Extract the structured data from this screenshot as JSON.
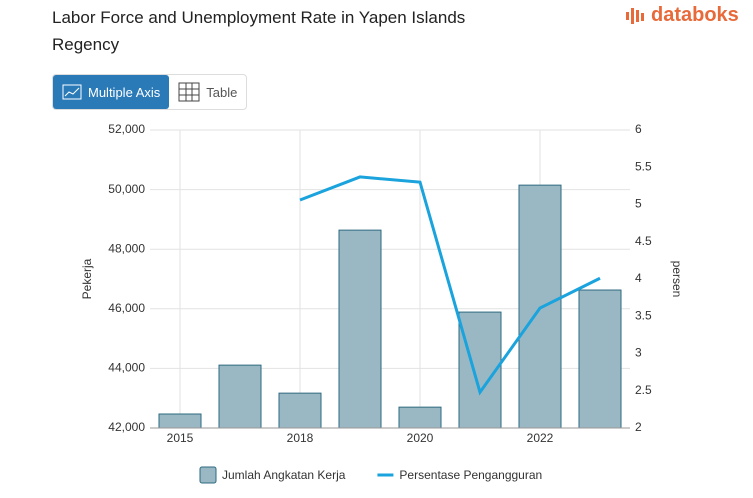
{
  "brand": "databoks",
  "buttons": [
    "Multiple Axis",
    "Table"
  ],
  "chart_data": {
    "type": "bar",
    "title": "Labor Force and Unemployment Rate in Yapen Islands Regency",
    "categories": [
      "2015",
      null,
      "2018",
      null,
      "2020",
      null,
      "2022",
      null
    ],
    "series": [
      {
        "name": "Jumlah Angkatan Kerja",
        "type": "bar",
        "color": "#9ab8c4",
        "values": [
          42470,
          44110,
          43170,
          48640,
          42700,
          45890,
          50150,
          46630
        ]
      },
      {
        "name": "Persentase Pengangguran",
        "type": "line",
        "axis": "y2",
        "color": "#1aa3dc",
        "values": [
          null,
          null,
          5.06,
          5.37,
          5.3,
          2.48,
          3.61,
          4.01
        ]
      }
    ],
    "ylabel": "Pekerja",
    "y2label": "persen",
    "ylim": [
      42000,
      52000
    ],
    "yticks": [
      {
        "value": 42000,
        "label": "42,000"
      },
      {
        "value": 44000,
        "label": "44,000"
      },
      {
        "value": 46000,
        "label": "46,000"
      },
      {
        "value": 48000,
        "label": "48,000"
      },
      {
        "value": 50000,
        "label": "50,000"
      },
      {
        "value": 52000,
        "label": "52,000"
      }
    ],
    "y2lim": [
      2,
      6
    ],
    "y2ticks": [
      2,
      2.5,
      3,
      3.5,
      4,
      4.5,
      5,
      5.5,
      6
    ],
    "grid": true,
    "legend": "bottom"
  }
}
